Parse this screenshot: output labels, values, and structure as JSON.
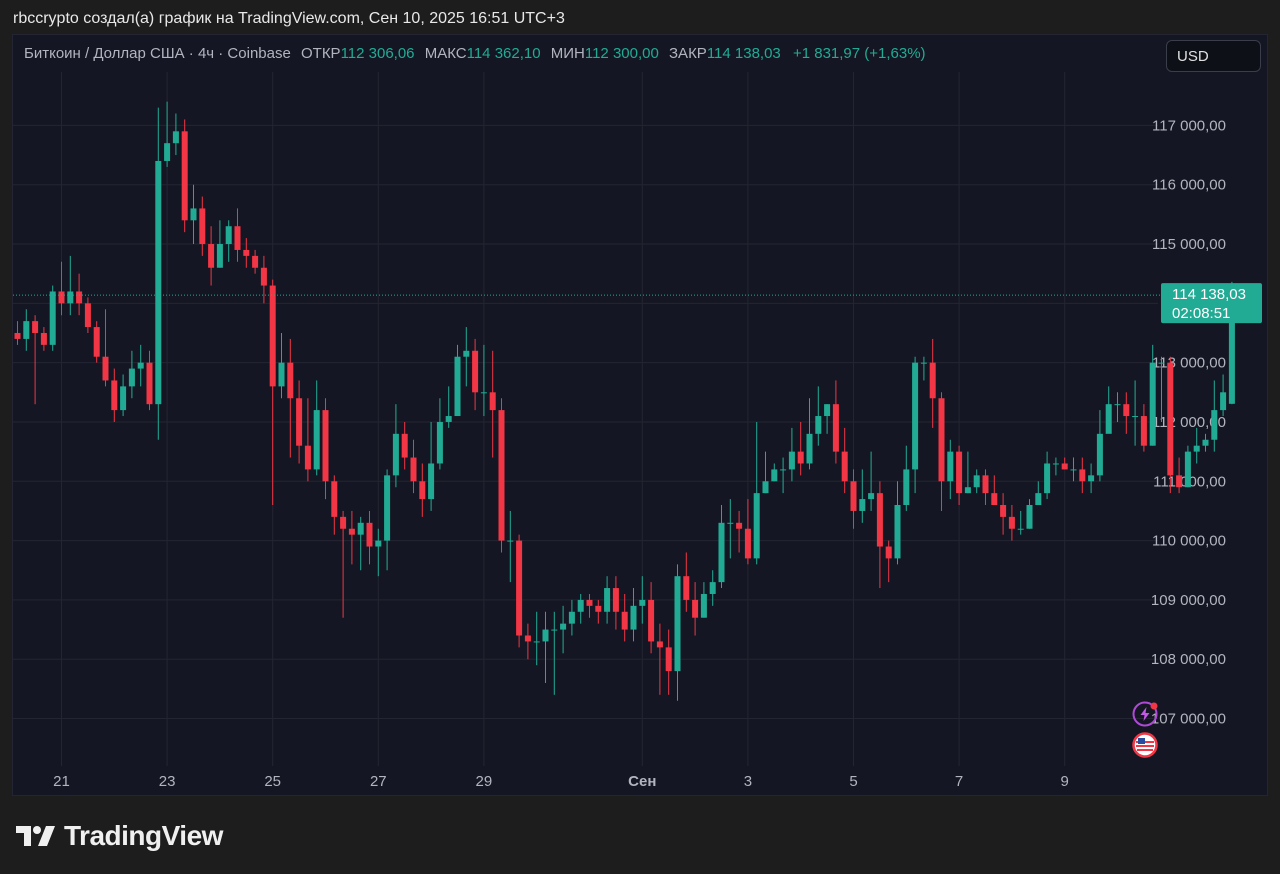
{
  "header": {
    "caption": "rbccrypto создал(а) график на TradingView.com, Сен 10, 2025 16:51 UTC+3"
  },
  "legend": {
    "symbol": "Биткоин / Доллар США · 4ч · Coinbase",
    "open_label": "ОТКР",
    "open_value": "112 306,06",
    "high_label": "МАКС",
    "high_value": "114 362,10",
    "low_label": "МИН",
    "low_value": "112 300,00",
    "close_label": "ЗАКР",
    "close_value": "114 138,03",
    "change": "+1 831,97 (+1,63%)"
  },
  "currency": "USD",
  "brand": {
    "name": "TradingView"
  },
  "colors": {
    "up": "#22ab94",
    "down": "#f23645",
    "bg": "#141723",
    "grid": "#232632"
  },
  "icons": {
    "flash": "lightning-icon",
    "flag": "us-flag-icon"
  },
  "chart_data": {
    "type": "candlestick",
    "title": "Биткоин / Доллар США · 4ч · Coinbase",
    "y_range": [
      106200,
      117900
    ],
    "y_ticks": [
      107000,
      108000,
      109000,
      110000,
      111000,
      112000,
      113000,
      114000,
      115000,
      116000,
      117000
    ],
    "y_tick_labels": [
      "107 000,00",
      "108 000,00",
      "109 000,00",
      "110 000,00",
      "111 000,00",
      "112 000,00",
      "113 000,00",
      "",
      "115 000,00",
      "116 000,00",
      "117 000,00"
    ],
    "x_ticks": [
      {
        "index": 5,
        "label": "21"
      },
      {
        "index": 17,
        "label": "23"
      },
      {
        "index": 29,
        "label": "25"
      },
      {
        "index": 41,
        "label": "27"
      },
      {
        "index": 53,
        "label": "29"
      },
      {
        "index": 71,
        "label": "Сен"
      },
      {
        "index": 83,
        "label": "3"
      },
      {
        "index": 95,
        "label": "5"
      },
      {
        "index": 107,
        "label": "7"
      },
      {
        "index": 119,
        "label": "9"
      }
    ],
    "last_price": {
      "value": 114138.03,
      "label": "114 138,03",
      "countdown": "02:08:51"
    },
    "candles": [
      [
        113500,
        113400,
        113700,
        113300
      ],
      [
        113400,
        113700,
        113900,
        113200
      ],
      [
        113700,
        113500,
        113800,
        112300
      ],
      [
        113500,
        113300,
        113600,
        113200
      ],
      [
        113300,
        114200,
        114300,
        113200
      ],
      [
        114200,
        114000,
        114700,
        113800
      ],
      [
        114000,
        114200,
        114800,
        113800
      ],
      [
        114200,
        114000,
        114500,
        113800
      ],
      [
        114000,
        113600,
        114100,
        113500
      ],
      [
        113600,
        113100,
        113700,
        113000
      ],
      [
        113100,
        112700,
        113900,
        112600
      ],
      [
        112700,
        112200,
        112900,
        112000
      ],
      [
        112200,
        112600,
        112800,
        112100
      ],
      [
        112600,
        112900,
        113200,
        112400
      ],
      [
        112900,
        113000,
        113300,
        112600
      ],
      [
        113000,
        112300,
        113200,
        112200
      ],
      [
        112300,
        116400,
        117300,
        111700
      ],
      [
        116400,
        116700,
        117400,
        116300
      ],
      [
        116700,
        116900,
        117200,
        116500
      ],
      [
        116900,
        115400,
        117100,
        115200
      ],
      [
        115400,
        115600,
        116000,
        115000
      ],
      [
        115600,
        115000,
        115800,
        114800
      ],
      [
        115000,
        114600,
        115300,
        114300
      ],
      [
        114600,
        115000,
        115400,
        114600
      ],
      [
        115000,
        115300,
        115400,
        114700
      ],
      [
        115300,
        114900,
        115600,
        114700
      ],
      [
        114900,
        114800,
        115100,
        114600
      ],
      [
        114800,
        114600,
        114900,
        114500
      ],
      [
        114600,
        114300,
        114800,
        114000
      ],
      [
        114300,
        112600,
        114400,
        110600
      ],
      [
        112600,
        113000,
        113500,
        112400
      ],
      [
        113000,
        112400,
        113400,
        111400
      ],
      [
        112400,
        111600,
        112700,
        111300
      ],
      [
        111600,
        111200,
        112400,
        111000
      ],
      [
        111200,
        112200,
        112700,
        111100
      ],
      [
        112200,
        111000,
        112400,
        110700
      ],
      [
        111000,
        110400,
        111100,
        110100
      ],
      [
        110400,
        110200,
        110500,
        108700
      ],
      [
        110200,
        110100,
        110500,
        109600
      ],
      [
        110100,
        110300,
        110400,
        109500
      ],
      [
        110300,
        109900,
        110500,
        109600
      ],
      [
        109900,
        110000,
        110200,
        109400
      ],
      [
        110000,
        111100,
        111200,
        109500
      ],
      [
        111100,
        111800,
        112300,
        110900
      ],
      [
        111800,
        111400,
        112000,
        111200
      ],
      [
        111400,
        111000,
        111700,
        110800
      ],
      [
        111000,
        110700,
        111300,
        110400
      ],
      [
        110700,
        111300,
        112000,
        110500
      ],
      [
        111300,
        112000,
        112400,
        111200
      ],
      [
        112000,
        112100,
        112600,
        111900
      ],
      [
        112100,
        113100,
        113300,
        112500
      ],
      [
        113100,
        113200,
        113600,
        112600
      ],
      [
        113200,
        112500,
        113400,
        112200
      ],
      [
        112500,
        112500,
        113300,
        112100
      ],
      [
        112500,
        112200,
        113200,
        111400
      ],
      [
        112200,
        110000,
        112400,
        109800
      ],
      [
        110000,
        110000,
        110500,
        109300
      ],
      [
        110000,
        108400,
        110100,
        108200
      ],
      [
        108400,
        108300,
        108600,
        108000
      ],
      [
        108300,
        108300,
        108800,
        107900
      ],
      [
        108300,
        108500,
        108800,
        107600
      ],
      [
        108500,
        108500,
        108800,
        107400
      ],
      [
        108500,
        108600,
        108900,
        108100
      ],
      [
        108600,
        108800,
        109000,
        108400
      ],
      [
        108800,
        109000,
        109100,
        108600
      ],
      [
        109000,
        108900,
        109100,
        108700
      ],
      [
        108900,
        108800,
        109000,
        108600
      ],
      [
        108800,
        109200,
        109400,
        108600
      ],
      [
        109200,
        108800,
        109400,
        108500
      ],
      [
        108800,
        108500,
        109100,
        108300
      ],
      [
        108500,
        108900,
        109200,
        108300
      ],
      [
        108900,
        109000,
        109400,
        108600
      ],
      [
        109000,
        108300,
        109300,
        108100
      ],
      [
        108300,
        108200,
        108600,
        107400
      ],
      [
        108200,
        107800,
        108500,
        107400
      ],
      [
        107800,
        109400,
        109600,
        107300
      ],
      [
        109400,
        109000,
        109800,
        108800
      ],
      [
        109000,
        108700,
        109300,
        108400
      ],
      [
        108700,
        109100,
        109300,
        108700
      ],
      [
        109100,
        109300,
        109500,
        108900
      ],
      [
        109300,
        110300,
        110600,
        109200
      ],
      [
        110300,
        110300,
        110700,
        109700
      ],
      [
        110300,
        110200,
        110500,
        109800
      ],
      [
        110200,
        109700,
        110700,
        109600
      ],
      [
        109700,
        110800,
        112000,
        109600
      ],
      [
        110800,
        111000,
        111500,
        110800
      ],
      [
        111000,
        111200,
        111300,
        111000
      ],
      [
        111200,
        111200,
        111400,
        110800
      ],
      [
        111200,
        111500,
        111900,
        111000
      ],
      [
        111500,
        111300,
        112000,
        111100
      ],
      [
        111300,
        111800,
        112400,
        111200
      ],
      [
        111800,
        112100,
        112600,
        111600
      ],
      [
        112100,
        112300,
        112300,
        111800
      ],
      [
        112300,
        111500,
        112700,
        111300
      ],
      [
        111500,
        111000,
        111900,
        110800
      ],
      [
        111000,
        110500,
        111200,
        110200
      ],
      [
        110500,
        110700,
        111200,
        110300
      ],
      [
        110700,
        110800,
        111500,
        110500
      ],
      [
        110800,
        109900,
        111000,
        109200
      ],
      [
        109900,
        109700,
        110000,
        109300
      ],
      [
        109700,
        110600,
        111000,
        109600
      ],
      [
        110600,
        111200,
        111600,
        110500
      ],
      [
        111200,
        113000,
        113100,
        110800
      ],
      [
        113000,
        113000,
        113100,
        112700
      ],
      [
        113000,
        112400,
        113400,
        111900
      ],
      [
        112400,
        111000,
        112500,
        110500
      ],
      [
        111000,
        111500,
        111700,
        110700
      ],
      [
        111500,
        110800,
        111600,
        110600
      ],
      [
        110800,
        110900,
        111500,
        110800
      ],
      [
        110900,
        111100,
        111200,
        110800
      ],
      [
        111100,
        110800,
        111200,
        110600
      ],
      [
        110800,
        110600,
        111100,
        110600
      ],
      [
        110600,
        110400,
        110800,
        110100
      ],
      [
        110400,
        110200,
        110600,
        110000
      ],
      [
        110200,
        110200,
        110500,
        110100
      ],
      [
        110200,
        110600,
        110700,
        110200
      ],
      [
        110600,
        110800,
        111000,
        110600
      ],
      [
        110800,
        111300,
        111500,
        110700
      ],
      [
        111300,
        111300,
        111400,
        111100
      ],
      [
        111300,
        111200,
        111400,
        111200
      ],
      [
        111200,
        111200,
        111400,
        111000
      ],
      [
        111200,
        111000,
        111400,
        110800
      ],
      [
        111000,
        111100,
        111300,
        110800
      ],
      [
        111100,
        111800,
        112200,
        111000
      ],
      [
        111800,
        112300,
        112600,
        111900
      ],
      [
        112300,
        112300,
        112500,
        112000
      ],
      [
        112300,
        112100,
        112500,
        111800
      ],
      [
        112100,
        112100,
        112700,
        111600
      ],
      [
        112100,
        111600,
        112300,
        111500
      ],
      [
        111600,
        113000,
        113300,
        111600
      ],
      [
        113000,
        113000,
        113100,
        112000
      ],
      [
        113000,
        111100,
        113100,
        110800
      ],
      [
        111100,
        110900,
        111400,
        110800
      ],
      [
        110900,
        111500,
        111600,
        110900
      ],
      [
        111500,
        111600,
        111900,
        111300
      ],
      [
        111600,
        111700,
        111800,
        111500
      ],
      [
        111700,
        112200,
        112700,
        111500
      ],
      [
        112200,
        112500,
        112800,
        112100
      ],
      [
        112306,
        114138,
        114362,
        112300
      ]
    ]
  }
}
